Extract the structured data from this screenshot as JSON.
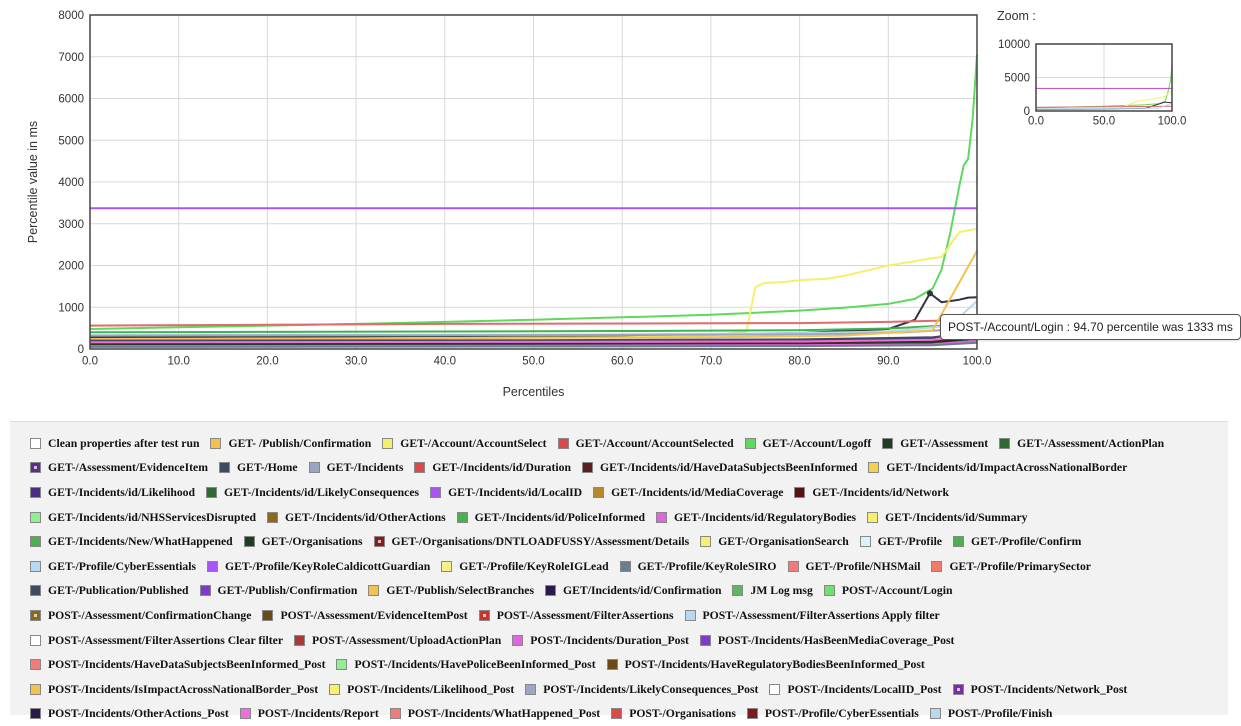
{
  "chart_data": [
    {
      "type": "line",
      "xlabel": "Percentiles",
      "ylabel": "Percentile value in ms",
      "xlim": [
        0,
        100
      ],
      "ylim": [
        0,
        8000
      ],
      "x_ticks": [
        "0.0",
        "10.0",
        "20.0",
        "30.0",
        "40.0",
        "50.0",
        "60.0",
        "70.0",
        "80.0",
        "90.0",
        "100.0"
      ],
      "y_ticks": [
        "0",
        "1000",
        "2000",
        "3000",
        "4000",
        "5000",
        "6000",
        "7000",
        "8000"
      ],
      "grid": true,
      "series": [
        {
          "name": "GET-/Account/Logoff",
          "color": "#5ed85e",
          "points": [
            [
              0,
              480
            ],
            [
              10,
              520
            ],
            [
              20,
              560
            ],
            [
              30,
              600
            ],
            [
              40,
              650
            ],
            [
              50,
              700
            ],
            [
              60,
              760
            ],
            [
              70,
              820
            ],
            [
              75,
              870
            ],
            [
              80,
              920
            ],
            [
              85,
              990
            ],
            [
              90,
              1080
            ],
            [
              93,
              1200
            ],
            [
              95,
              1450
            ],
            [
              96,
              1900
            ],
            [
              97,
              2800
            ],
            [
              98,
              3900
            ],
            [
              98.5,
              4400
            ],
            [
              99,
              4550
            ],
            [
              99.5,
              5500
            ],
            [
              100,
              7050
            ]
          ]
        },
        {
          "name": "GET-/Account/AccountSelect",
          "color": "#f5f06a",
          "points": [
            [
              0,
              200
            ],
            [
              20,
              230
            ],
            [
              40,
              260
            ],
            [
              60,
              300
            ],
            [
              70,
              330
            ],
            [
              74,
              420
            ],
            [
              75,
              1480
            ],
            [
              76,
              1580
            ],
            [
              78,
              1600
            ],
            [
              80,
              1650
            ],
            [
              83,
              1680
            ],
            [
              85,
              1750
            ],
            [
              88,
              1900
            ],
            [
              90,
              2000
            ],
            [
              93,
              2100
            ],
            [
              95,
              2180
            ],
            [
              96,
              2200
            ],
            [
              97,
              2500
            ],
            [
              98,
              2800
            ],
            [
              100,
              2880
            ]
          ]
        },
        {
          "name": "POST-/Incidents/HasBeenMediaCoverage_Post",
          "color": "#a855f7",
          "points": [
            [
              0,
              3370
            ],
            [
              100,
              3370
            ]
          ]
        },
        {
          "name": "POST-/Account/Login",
          "color": "#333344",
          "points": [
            [
              0,
              280
            ],
            [
              30,
              300
            ],
            [
              60,
              330
            ],
            [
              80,
              380
            ],
            [
              90,
              480
            ],
            [
              93,
              700
            ],
            [
              94.7,
              1333
            ],
            [
              96,
              1120
            ],
            [
              98,
              1180
            ],
            [
              99,
              1230
            ],
            [
              100,
              1240
            ]
          ]
        },
        {
          "name": "GET-/Account/AccountSelected",
          "color": "#e26a6a",
          "points": [
            [
              0,
              560
            ],
            [
              20,
              580
            ],
            [
              40,
              600
            ],
            [
              60,
              610
            ],
            [
              80,
              620
            ],
            [
              90,
              650
            ],
            [
              100,
              700
            ]
          ]
        },
        {
          "name": "GET-/Assessment",
          "color": "#3cb54a",
          "points": [
            [
              0,
              400
            ],
            [
              20,
              410
            ],
            [
              40,
              420
            ],
            [
              60,
              430
            ],
            [
              80,
              450
            ],
            [
              90,
              490
            ],
            [
              100,
              600
            ]
          ]
        },
        {
          "name": "GET-/Profile",
          "color": "#b8d8f0",
          "points": [
            [
              0,
              330
            ],
            [
              30,
              340
            ],
            [
              60,
              350
            ],
            [
              80,
              380
            ],
            [
              90,
              420
            ],
            [
              97,
              560
            ],
            [
              100,
              1150
            ]
          ]
        },
        {
          "name": "GET-/Incidents",
          "color": "#9aa7c2",
          "points": [
            [
              0,
              320
            ],
            [
              40,
              330
            ],
            [
              70,
              340
            ],
            [
              85,
              360
            ],
            [
              92,
              400
            ],
            [
              100,
              500
            ]
          ]
        },
        {
          "name": "GET-/Publish/Confirmation",
          "color": "#f2c14e",
          "points": [
            [
              0,
              240
            ],
            [
              40,
              260
            ],
            [
              70,
              280
            ],
            [
              85,
              320
            ],
            [
              95,
              450
            ],
            [
              100,
              2350
            ]
          ]
        },
        {
          "name": "GET-/Incidents/id/Likelihood",
          "color": "#4b2e83",
          "points": [
            [
              0,
              140
            ],
            [
              50,
              160
            ],
            [
              80,
              190
            ],
            [
              95,
              260
            ],
            [
              100,
              500
            ]
          ]
        },
        {
          "name": "GET-/Incidents/id/Network",
          "color": "#6b1a1a",
          "points": [
            [
              0,
              110
            ],
            [
              50,
              120
            ],
            [
              80,
              140
            ],
            [
              95,
              180
            ],
            [
              100,
              300
            ]
          ]
        },
        {
          "name": "GET-/Organisations",
          "color": "#1e3d23",
          "points": [
            [
              0,
              90
            ],
            [
              50,
              100
            ],
            [
              80,
              120
            ],
            [
              95,
              150
            ],
            [
              100,
              250
            ]
          ]
        },
        {
          "name": "GET-/Incidents/id/RegulatoryBodies",
          "color": "#e066e0",
          "points": [
            [
              0,
              70
            ],
            [
              50,
              80
            ],
            [
              80,
              90
            ],
            [
              95,
              110
            ],
            [
              100,
              200
            ]
          ]
        },
        {
          "name": "GET-/Home",
          "color": "#3d4b5c",
          "points": [
            [
              0,
              200
            ],
            [
              50,
              210
            ],
            [
              80,
              230
            ],
            [
              95,
              280
            ],
            [
              100,
              380
            ]
          ]
        },
        {
          "name": "POST-/Incidents/Report",
          "color": "#ee6ee0",
          "points": [
            [
              0,
              160
            ],
            [
              50,
              170
            ],
            [
              80,
              180
            ],
            [
              95,
              220
            ],
            [
              100,
              320
            ]
          ]
        },
        {
          "name": "GET-/Profile/KeyRoleSIRO",
          "color": "#6b7d8f",
          "points": [
            [
              0,
              50
            ],
            [
              50,
              60
            ],
            [
              80,
              70
            ],
            [
              95,
              90
            ],
            [
              100,
              150
            ]
          ]
        }
      ]
    },
    {
      "type": "line",
      "title": "Zoom :",
      "xlim": [
        0,
        100
      ],
      "ylim": [
        0,
        10000
      ],
      "x_ticks": [
        "0.0",
        "50.0",
        "100.0"
      ],
      "y_ticks": [
        "0",
        "5000",
        "10000"
      ],
      "grid": true,
      "series": [
        {
          "name": "GET-/Account/Logoff",
          "color": "#5ed85e",
          "points": [
            [
              0,
              480
            ],
            [
              50,
              700
            ],
            [
              80,
              920
            ],
            [
              90,
              1080
            ],
            [
              95,
              1450
            ],
            [
              97,
              2800
            ],
            [
              99,
              4550
            ],
            [
              100,
              7050
            ]
          ]
        },
        {
          "name": "GET-/Account/AccountSelect",
          "color": "#f5f06a",
          "points": [
            [
              0,
              200
            ],
            [
              60,
              300
            ],
            [
              75,
              1480
            ],
            [
              85,
              1750
            ],
            [
              95,
              2180
            ],
            [
              98,
              2800
            ],
            [
              100,
              2880
            ]
          ]
        },
        {
          "name": "POST-/Incidents/HasBeenMediaCoverage_Post",
          "color": "#c040c0",
          "points": [
            [
              0,
              3370
            ],
            [
              100,
              3370
            ]
          ]
        },
        {
          "name": "POST-/Account/Login",
          "color": "#333344",
          "points": [
            [
              0,
              280
            ],
            [
              80,
              380
            ],
            [
              94.7,
              1333
            ],
            [
              100,
              1240
            ]
          ]
        },
        {
          "name": "GET-/Account/AccountSelected",
          "color": "#e26a6a",
          "points": [
            [
              0,
              560
            ],
            [
              100,
              700
            ]
          ]
        },
        {
          "name": "GET-/Profile",
          "color": "#b8d8f0",
          "points": [
            [
              0,
              330
            ],
            [
              90,
              420
            ],
            [
              100,
              1150
            ]
          ]
        }
      ]
    }
  ],
  "tooltip": "POST-/Account/Login : 94.70 percentile was 1333 ms",
  "legend": [
    [
      [
        "Clean properties after test run",
        "#ffffff",
        false
      ],
      [
        "GET- /Publish/Confirmation",
        "#f2c14e",
        false
      ],
      [
        "GET-/Account/AccountSelect",
        "#f5f06a",
        false
      ],
      [
        "GET-/Account/AccountSelected",
        "#d94b4b",
        false
      ],
      [
        "GET-/Account/Logoff",
        "#5ed85e",
        false
      ],
      [
        "GET-/Assessment",
        "#1e3d23",
        false
      ],
      [
        "GET-/Assessment/ActionPlan",
        "#2e6b34",
        false
      ]
    ],
    [
      [
        "GET-/Assessment/EvidenceItem",
        "#5b2d8e",
        true
      ],
      [
        "GET-/Home",
        "#3d4b5c",
        false
      ],
      [
        "GET-/Incidents",
        "#9aa7c2",
        false
      ],
      [
        "GET-/Incidents/id/Duration",
        "#d94b4b",
        false
      ],
      [
        "GET-/Incidents/id/HaveDataSubjectsBeenInformed",
        "#5a1f1f",
        false
      ],
      [
        "GET-/Incidents/id/ImpactAcrossNationalBorder",
        "#f5d04e",
        false
      ]
    ],
    [
      [
        "GET-/Incidents/id/Likelihood",
        "#4b2e83",
        false
      ],
      [
        "GET-/Incidents/id/LikelyConsequences",
        "#2e6b34",
        false
      ],
      [
        "GET-/Incidents/id/LocalID",
        "#a855f7",
        false
      ],
      [
        "GET-/Incidents/id/MediaCoverage",
        "#b58a2a",
        false
      ],
      [
        "GET-/Incidents/id/Network",
        "#5a1010",
        false
      ]
    ],
    [
      [
        "GET-/Incidents/id/NHSServicesDisrupted",
        "#8ef08e",
        false
      ],
      [
        "GET-/Incidents/id/OtherActions",
        "#8a6a1a",
        false
      ],
      [
        "GET-/Incidents/id/PoliceInformed",
        "#4caf50",
        false
      ],
      [
        "GET-/Incidents/id/RegulatoryBodies",
        "#e066e0",
        false
      ],
      [
        "GET-/Incidents/id/Summary",
        "#f7f06a",
        false
      ]
    ],
    [
      [
        "GET-/Incidents/New/WhatHappened",
        "#4caf50",
        false
      ],
      [
        "GET-/Organisations",
        "#1e3d23",
        false
      ],
      [
        "GET-/Organisations/DNTLOADFUSSY/Assessment/Details",
        "#8b1a1a",
        true
      ],
      [
        "GET-/OrganisationSearch",
        "#f7f06a",
        false
      ],
      [
        "GET-/Profile",
        "#d9f4f8",
        false
      ],
      [
        "GET-/Profile/Confirm",
        "#4caf50",
        false
      ]
    ],
    [
      [
        "GET-/Profile/CyberEssentials",
        "#b8d8f0",
        false
      ],
      [
        "GET-/Profile/KeyRoleCaldicottGuardian",
        "#a855f7",
        false
      ],
      [
        "GET-/Profile/KeyRoleIGLead",
        "#f7f08a",
        false
      ],
      [
        "GET-/Profile/KeyRoleSIRO",
        "#6b7d8f",
        false
      ],
      [
        "GET-/Profile/NHSMail",
        "#f27a7a",
        false
      ],
      [
        "GET-/Profile/PrimarySector",
        "#f27a6a",
        false
      ]
    ],
    [
      [
        "GET-/Publication/Published",
        "#3d4b5c",
        false
      ],
      [
        "GET-/Publish/Confirmation",
        "#7b3dc9",
        false
      ],
      [
        "GET-/Publish/SelectBranches",
        "#f2c14e",
        false
      ],
      [
        "GET/Incidents/id/Confirmation",
        "#2a1a4a",
        false
      ],
      [
        "JM Log msg",
        "#5cb85c",
        false
      ],
      [
        "POST-/Account/Login",
        "#6fe06f",
        false
      ]
    ],
    [
      [
        "POST-/Assessment/ConfirmationChange",
        "#8a6a1a",
        true
      ],
      [
        "POST-/Assessment/EvidenceItemPost",
        "#6b4a1a",
        false
      ],
      [
        "POST-/Assessment/FilterAssertions",
        "#c0392b",
        true
      ],
      [
        "POST-/Assessment/FilterAssertions Apply filter",
        "#b8d8f0",
        false
      ]
    ],
    [
      [
        "POST-/Assessment/FilterAssertions Clear filter",
        "#ffffff",
        false
      ],
      [
        "POST-/Assessment/UploadActionPlan",
        "#a83a3a",
        false
      ],
      [
        "POST-/Incidents/Duration_Post",
        "#e066e0",
        false
      ],
      [
        "POST-/Incidents/HasBeenMediaCoverage_Post",
        "#7b3dc9",
        false
      ]
    ],
    [
      [
        "POST-/Incidents/HaveDataSubjectsBeenInformed_Post",
        "#f27a7a",
        false
      ],
      [
        "POST-/Incidents/HavePoliceBeenInformed_Post",
        "#8ef08e",
        false
      ],
      [
        "POST-/Incidents/HaveRegulatoryBodiesBeenInformed_Post",
        "#6b4a1a",
        false
      ]
    ],
    [
      [
        "POST-/Incidents/IsImpactAcrossNationalBorder_Post",
        "#f2c14e",
        false
      ],
      [
        "POST-/Incidents/Likelihood_Post",
        "#f7f06a",
        false
      ],
      [
        "POST-/Incidents/LikelyConsequences_Post",
        "#9aa7c2",
        false
      ],
      [
        "POST-/Incidents/LocalID_Post",
        "#ffffff",
        false
      ],
      [
        "POST-/Incidents/Network_Post",
        "#7b2da8",
        true
      ]
    ],
    [
      [
        "POST-/Incidents/OtherActions_Post",
        "#2a1a4a",
        false
      ],
      [
        "POST-/Incidents/Report",
        "#ee6ee0",
        false
      ],
      [
        "POST-/Incidents/WhatHappened_Post",
        "#f27a7a",
        false
      ],
      [
        "POST-/Organisations",
        "#d94b4b",
        false
      ],
      [
        "POST-/Profile/CyberEssentials",
        "#7a1a1a",
        false
      ],
      [
        "POST-/Profile/Finish",
        "#b8d8f0",
        false
      ]
    ]
  ]
}
